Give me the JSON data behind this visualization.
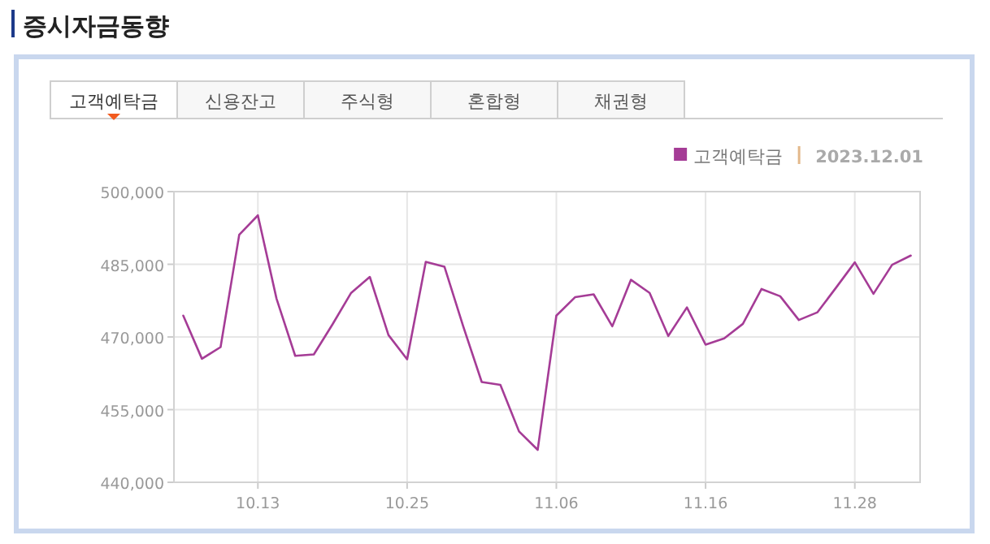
{
  "chart_data": {
    "type": "line",
    "title": "증시자금동향",
    "annotations": [
      "고객예탁금",
      "신용잔고",
      "주식형",
      "혼합형",
      "채권형",
      "2023.12.01"
    ],
    "categories": [
      null,
      null,
      null,
      null,
      "10.13",
      null,
      null,
      null,
      null,
      null,
      null,
      null,
      "10.25",
      null,
      null,
      null,
      null,
      null,
      null,
      null,
      "11.06",
      null,
      null,
      null,
      null,
      null,
      null,
      null,
      "11.16",
      null,
      null,
      null,
      null,
      null,
      null,
      null,
      "11.28",
      null,
      null,
      null
    ],
    "series": [
      {
        "name": "고객예탁금",
        "color": "#a53c96",
        "values": [
          474400,
          465500,
          467900,
          491100,
          495100,
          477900,
          466100,
          466400,
          472600,
          479100,
          482400,
          470400,
          465400,
          485500,
          484500,
          472300,
          460700,
          460100,
          450500,
          446700,
          474400,
          478200,
          478800,
          472200,
          481800,
          479100,
          470200,
          476100,
          468400,
          469700,
          472700,
          479900,
          478400,
          473500,
          475100,
          480200,
          485400,
          478900,
          484900,
          486800
        ]
      }
    ],
    "ylim": [
      440000,
      500000
    ],
    "yticks": [
      {
        "value": 440000,
        "label": "440,000"
      },
      {
        "value": 455000,
        "label": "455,000"
      },
      {
        "value": 470000,
        "label": "470,000"
      },
      {
        "value": 485000,
        "label": "485,000"
      },
      {
        "value": 500000,
        "label": "500,000"
      }
    ],
    "grid": true,
    "legend": "top right",
    "marker": "none",
    "line_style": "solid"
  }
}
